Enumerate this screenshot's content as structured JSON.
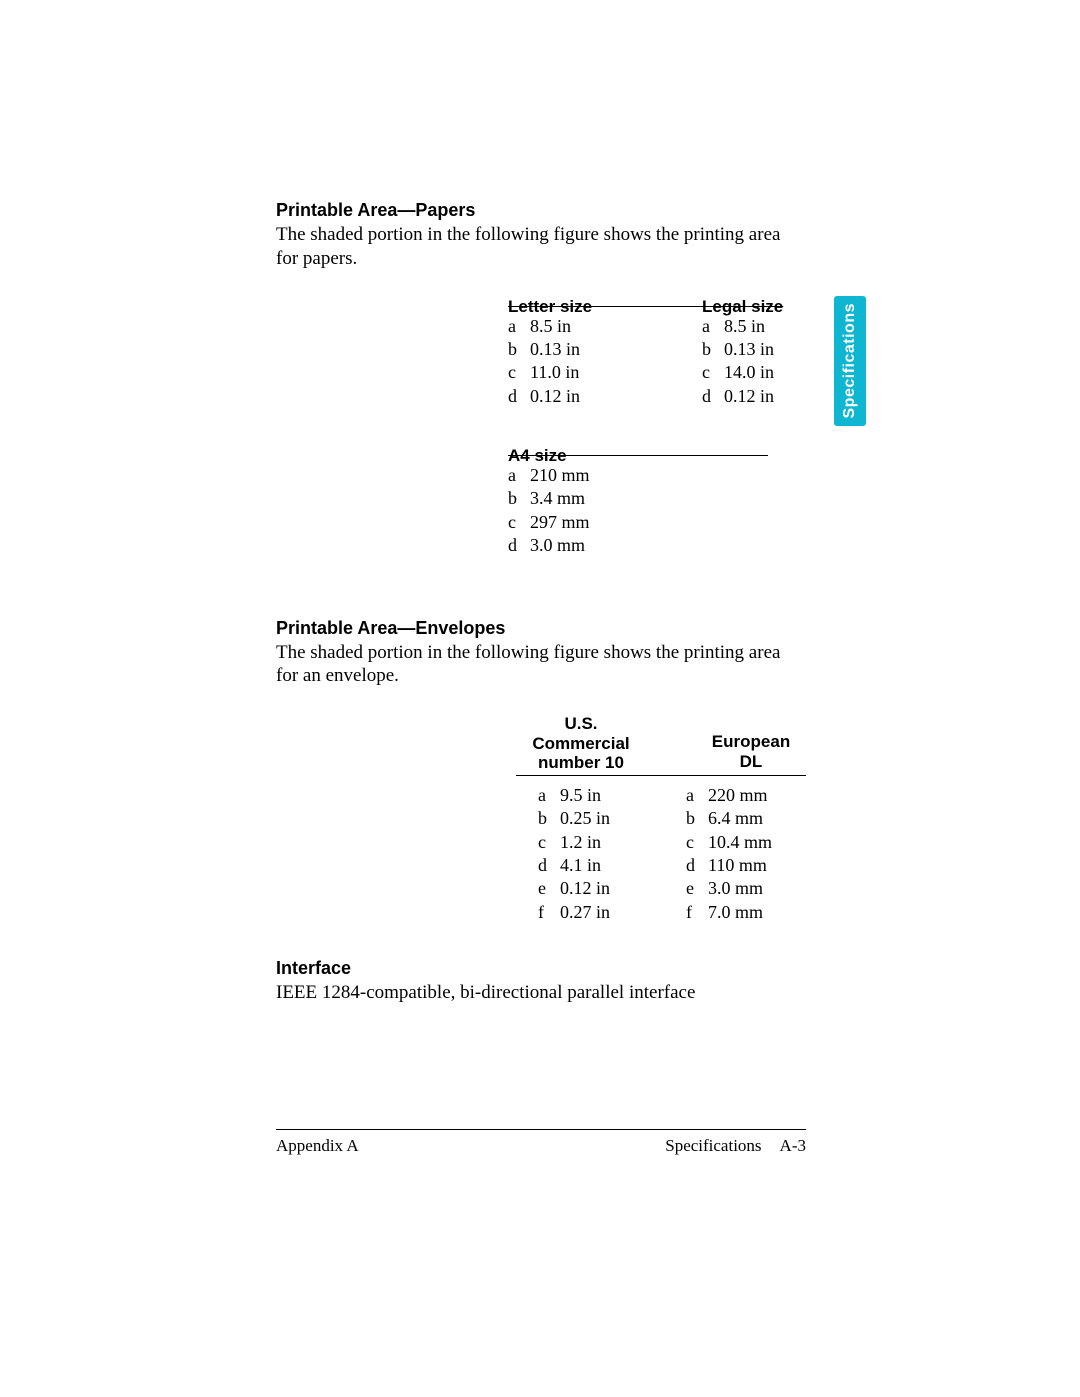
{
  "tab": {
    "label": "Specifications",
    "bg": "#0eb6d2"
  },
  "sections": {
    "papers": {
      "title": "Printable Area—Papers",
      "text": "The shaded portion in the following figure shows the printing area for papers."
    },
    "envelopes": {
      "title": "Printable Area—Envelopes",
      "text": "The shaded portion in the following figure shows the printing area for an envelope."
    },
    "interface": {
      "title": "Interface",
      "text": "IEEE 1284-compatible, bi-directional parallel interface"
    }
  },
  "letter": {
    "header": "Letter size",
    "rows": [
      {
        "k": "a",
        "v": "8.5 in"
      },
      {
        "k": "b",
        "v": "0.13 in"
      },
      {
        "k": "c",
        "v": "11.0 in"
      },
      {
        "k": "d",
        "v": "0.12 in"
      }
    ]
  },
  "legal": {
    "header": "Legal size",
    "rows": [
      {
        "k": "a",
        "v": "8.5 in"
      },
      {
        "k": "b",
        "v": "0.13 in"
      },
      {
        "k": "c",
        "v": "14.0 in"
      },
      {
        "k": "d",
        "v": "0.12 in"
      }
    ]
  },
  "a4": {
    "header": "A4 size",
    "rows": [
      {
        "k": "a",
        "v": "210 mm"
      },
      {
        "k": "b",
        "v": "3.4 mm"
      },
      {
        "k": "c",
        "v": "297 mm"
      },
      {
        "k": "d",
        "v": "3.0 mm"
      }
    ]
  },
  "us10": {
    "header": "U.S.\nCommercial\nnumber 10",
    "rows": [
      {
        "k": "a",
        "v": "9.5 in"
      },
      {
        "k": "b",
        "v": "0.25 in"
      },
      {
        "k": "c",
        "v": "1.2 in"
      },
      {
        "k": "d",
        "v": "4.1 in"
      },
      {
        "k": "e",
        "v": "0.12 in"
      },
      {
        "k": "f",
        "v": "0.27 in"
      }
    ]
  },
  "dl": {
    "header": "European\nDL",
    "rows": [
      {
        "k": "a",
        "v": "220 mm"
      },
      {
        "k": "b",
        "v": "6.4 mm"
      },
      {
        "k": "c",
        "v": "10.4 mm"
      },
      {
        "k": "d",
        "v": "110 mm"
      },
      {
        "k": "e",
        "v": "3.0 mm"
      },
      {
        "k": "f",
        "v": "7.0 mm"
      }
    ]
  },
  "footer": {
    "left": "Appendix A",
    "right_a": "Specifications",
    "right_b": "A-3"
  }
}
